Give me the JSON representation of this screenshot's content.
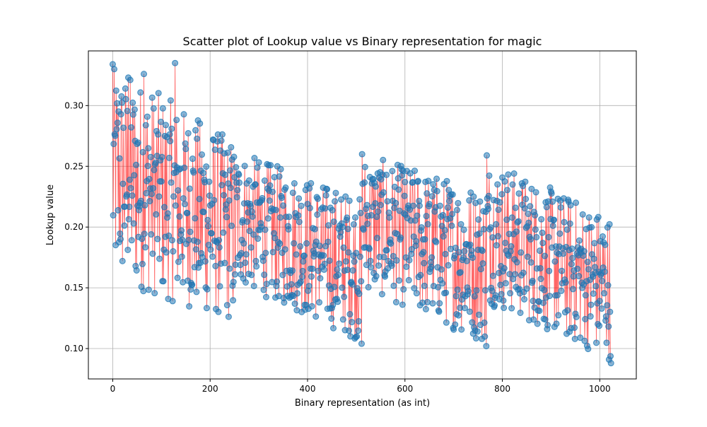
{
  "chart_data": {
    "type": "scatter",
    "title": "Scatter plot of Lookup value vs Binary representation for magic",
    "xlabel": "Binary representation (as int)",
    "ylabel": "Lookup value",
    "xlim": [
      -50,
      1075
    ],
    "ylim": [
      0.075,
      0.345
    ],
    "xticks": [
      0,
      200,
      400,
      600,
      800,
      1000
    ],
    "yticks": [
      0.1,
      0.15,
      0.2,
      0.25,
      0.3
    ],
    "xtick_labels": [
      "0",
      "200",
      "400",
      "600",
      "800",
      "1000"
    ],
    "ytick_labels": [
      "0.10",
      "0.15",
      "0.20",
      "0.25",
      "0.30"
    ],
    "grid": true,
    "marker_color": "#1f77b4",
    "marker_alpha": 0.55,
    "connector_color": "#ff0000",
    "connector_alpha": 0.6,
    "point_count": 1024,
    "x_range": [
      0,
      1023
    ],
    "segments": [
      {
        "x": [
          0,
          255
        ],
        "mean_start": 0.245,
        "mean_end": 0.195,
        "spread_start": 0.09,
        "spread_end": 0.075
      },
      {
        "x": [
          256,
          511
        ],
        "mean_start": 0.208,
        "mean_end": 0.165,
        "spread_start": 0.055,
        "spread_end": 0.06
      },
      {
        "x": [
          512,
          767
        ],
        "mean_start": 0.205,
        "mean_end": 0.168,
        "spread_start": 0.055,
        "spread_end": 0.065
      },
      {
        "x": [
          768,
          1023
        ],
        "mean_start": 0.197,
        "mean_end": 0.15,
        "spread_start": 0.06,
        "spread_end": 0.06
      }
    ],
    "notable_points": [
      {
        "x": 0,
        "y": 0.334
      },
      {
        "x": 128,
        "y": 0.335
      },
      {
        "x": 64,
        "y": 0.326
      },
      {
        "x": 32,
        "y": 0.323
      },
      {
        "x": 512,
        "y": 0.26
      },
      {
        "x": 768,
        "y": 0.259
      },
      {
        "x": 1023,
        "y": 0.088
      },
      {
        "x": 767,
        "y": 0.102
      },
      {
        "x": 511,
        "y": 0.104
      }
    ]
  }
}
